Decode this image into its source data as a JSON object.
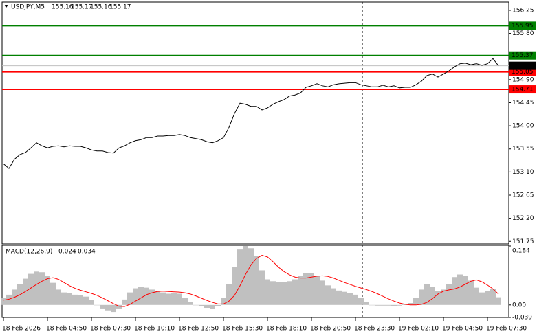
{
  "chart_data": [
    {
      "type": "line",
      "header": "USDJPY,M5",
      "ohlc": [
        155.16,
        155.17,
        155.16,
        155.17
      ],
      "categories": [
        "18 Feb 2026",
        null,
        null,
        null,
        null,
        null,
        null,
        null,
        "18 Feb 04:50",
        null,
        null,
        null,
        null,
        null,
        null,
        null,
        "18 Feb 07:30",
        null,
        null,
        null,
        null,
        null,
        null,
        null,
        "18 Feb 10:10",
        null,
        null,
        null,
        null,
        null,
        null,
        null,
        "18 Feb 12:50",
        null,
        null,
        null,
        null,
        null,
        null,
        null,
        "18 Feb 15:30",
        null,
        null,
        null,
        null,
        null,
        null,
        null,
        "18 Feb 18:10",
        null,
        null,
        null,
        null,
        null,
        null,
        null,
        "18 Feb 20:50",
        null,
        null,
        null,
        null,
        null,
        null,
        null,
        "18 Feb 23:30",
        null,
        null,
        null,
        null,
        null,
        null,
        null,
        "19 Feb 02:10",
        null,
        null,
        null,
        null,
        null,
        null,
        null,
        "19 Feb 04:50",
        null,
        null,
        null,
        null,
        null,
        null,
        null,
        "19 Feb 07:30",
        null,
        null
      ],
      "series": [
        {
          "color": "#000000",
          "values": [
            153.26,
            153.17,
            153.35,
            153.44,
            153.48,
            153.57,
            153.67,
            153.61,
            153.57,
            153.6,
            153.61,
            153.59,
            153.61,
            153.6,
            153.6,
            153.57,
            153.53,
            153.51,
            153.51,
            153.48,
            153.47,
            153.57,
            153.61,
            153.67,
            153.71,
            153.73,
            153.77,
            153.77,
            153.8,
            153.8,
            153.81,
            153.81,
            153.83,
            153.81,
            153.77,
            153.75,
            153.73,
            153.69,
            153.67,
            153.71,
            153.77,
            153.97,
            154.24,
            154.44,
            154.42,
            154.38,
            154.38,
            154.31,
            154.35,
            154.42,
            154.47,
            154.51,
            154.58,
            154.6,
            154.64,
            154.75,
            154.78,
            154.82,
            154.78,
            154.76,
            154.8,
            154.82,
            154.83,
            154.84,
            154.84,
            154.8,
            154.78,
            154.76,
            154.76,
            154.79,
            154.76,
            154.78,
            154.74,
            154.75,
            154.75,
            154.8,
            154.87,
            154.98,
            155.01,
            154.95,
            155.01,
            155.07,
            155.15,
            155.21,
            155.22,
            155.19,
            155.21,
            155.18,
            155.21,
            155.31,
            155.17
          ]
        }
      ],
      "ylim": [
        151.7,
        156.41
      ],
      "yticks": [
        156.25,
        {
          "value": 155.8,
          "label": "155.80"
        },
        {
          "value": 154.9,
          "label": "154.90"
        },
        154.45,
        {
          "value": 154,
          "label": "154.00"
        },
        153.55,
        {
          "value": 153.1,
          "label": "153.10"
        },
        152.65,
        {
          "value": 152.2,
          "label": "152.20"
        },
        151.75
      ],
      "levels": [
        {
          "value": 155.95,
          "color": "#008000"
        },
        {
          "value": 155.37,
          "color": "#008000"
        },
        {
          "value": 155.05,
          "color": "#ff0000"
        },
        {
          "value": 154.71,
          "color": "#ff0000"
        }
      ]
    },
    {
      "type": "macd",
      "title": "MACD(12,26,9)",
      "series": [
        {
          "kind": "bar",
          "color": "#c0c0c0",
          "values": [
            0.022,
            0.032,
            0.048,
            0.065,
            0.082,
            0.097,
            0.104,
            0.102,
            0.091,
            0.069,
            0.048,
            0.039,
            0.037,
            0.032,
            0.03,
            0.026,
            0.015,
            0,
            -0.011,
            -0.017,
            -0.022,
            -0.011,
            0.017,
            0.039,
            0.052,
            0.056,
            0.054,
            0.048,
            0.043,
            0.039,
            0.035,
            0.037,
            0.035,
            0.022,
            0.009,
            0,
            -0.004,
            -0.009,
            -0.013,
            -0.004,
            0.022,
            0.065,
            0.119,
            0.173,
            0.184,
            0.177,
            0.152,
            0.108,
            0.08,
            0.074,
            0.071,
            0.071,
            0.074,
            0.08,
            0.091,
            0.1,
            0.1,
            0.091,
            0.076,
            0.061,
            0.052,
            0.045,
            0.041,
            0.037,
            0.032,
            0.022,
            0.009,
            0,
            -0.002,
            -0.002,
            -0.002,
            -0.004,
            -0.002,
            0.002,
            0.006,
            0.022,
            0.048,
            0.065,
            0.056,
            0.043,
            0.048,
            0.065,
            0.087,
            0.095,
            0.091,
            0.076,
            0.054,
            0.039,
            0.043,
            0.05,
            0.024
          ]
        },
        {
          "kind": "line",
          "color": "#ff0000",
          "values": [
            0.015,
            0.018,
            0.024,
            0.032,
            0.042,
            0.053,
            0.064,
            0.074,
            0.082,
            0.085,
            0.08,
            0.07,
            0.06,
            0.052,
            0.046,
            0.041,
            0.036,
            0.03,
            0.022,
            0.013,
            0.004,
            -0.004,
            -0.005,
            0.002,
            0.012,
            0.022,
            0.032,
            0.038,
            0.042,
            0.043,
            0.042,
            0.041,
            0.04,
            0.038,
            0.034,
            0.028,
            0.021,
            0.014,
            0.008,
            0.003,
            0.003,
            0.012,
            0.03,
            0.06,
            0.095,
            0.125,
            0.145,
            0.155,
            0.15,
            0.135,
            0.118,
            0.104,
            0.094,
            0.087,
            0.084,
            0.084,
            0.087,
            0.09,
            0.091,
            0.089,
            0.084,
            0.077,
            0.07,
            0.064,
            0.058,
            0.053,
            0.048,
            0.042,
            0.035,
            0.027,
            0.019,
            0.012,
            0.006,
            0.002,
            0.0,
            0.0,
            0.002,
            0.008,
            0.02,
            0.034,
            0.043,
            0.047,
            0.05,
            0.056,
            0.065,
            0.074,
            0.078,
            0.072,
            0.062,
            0.05,
            0.034
          ]
        }
      ],
      "ylim": [
        -0.039,
        0.184
      ],
      "yticks": [
        0.184,
        {
          "value": 0,
          "label": "0.00"
        },
        -0.039
      ]
    }
  ]
}
